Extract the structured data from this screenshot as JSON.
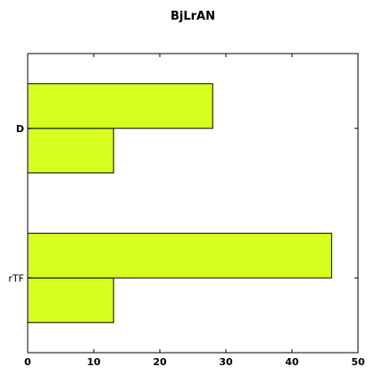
{
  "chart_data": {
    "type": "bar",
    "orientation": "horizontal",
    "title": "BjLrAN",
    "xlabel": "",
    "ylabel": "",
    "categories": [
      "rTF",
      "D"
    ],
    "bold_category_labels": [
      "D"
    ],
    "series": [
      {
        "values": [
          13,
          13
        ]
      },
      {
        "values": [
          46,
          28
        ]
      }
    ],
    "xlim": [
      0,
      50
    ],
    "xticks": [
      0,
      10,
      20,
      30,
      40,
      50
    ],
    "bar_color": "#d7ff1f",
    "edge_color": "#000000",
    "grid": false,
    "legend": "none"
  }
}
